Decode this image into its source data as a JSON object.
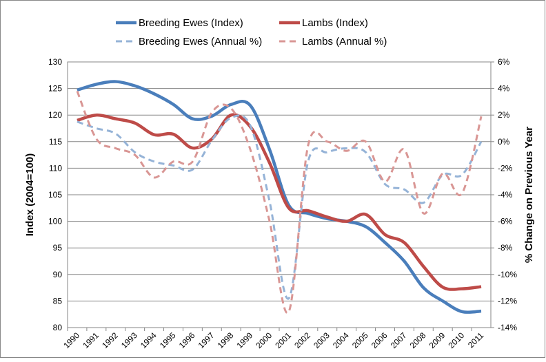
{
  "chart_data": {
    "type": "line",
    "categories": [
      "1990",
      "1991",
      "1992",
      "1993",
      "1994",
      "1995",
      "1996",
      "1997",
      "1998",
      "1999",
      "2000",
      "2001",
      "2002",
      "2003",
      "2004",
      "2005",
      "2006",
      "2007",
      "2008",
      "2009",
      "2010",
      "2011"
    ],
    "y_label": "Index (2004=100)",
    "y2_label": "% Change on Previous Year",
    "ylim": [
      80,
      130
    ],
    "yticks": [
      80,
      85,
      90,
      95,
      100,
      105,
      110,
      115,
      120,
      125,
      130
    ],
    "y2lim": [
      -14,
      6
    ],
    "y2ticks": [
      {
        "value": -14,
        "label": "-14%"
      },
      {
        "value": -12,
        "label": "-12%"
      },
      {
        "value": -10,
        "label": "-10%"
      },
      {
        "value": -8,
        "label": "-8%"
      },
      {
        "value": -6,
        "label": "-6%"
      },
      {
        "value": -4,
        "label": "-4%"
      },
      {
        "value": -2,
        "label": "-2%"
      },
      {
        "value": 0,
        "label": "0%"
      },
      {
        "value": 2,
        "label": "2%"
      },
      {
        "value": 4,
        "label": "4%"
      },
      {
        "value": 6,
        "label": "6%"
      }
    ],
    "grid": true,
    "smooth": true,
    "series": [
      {
        "name": "Breeding Ewes (Index)",
        "color": "#4a7ebb",
        "dashed": false,
        "values": [
          124.7,
          125.8,
          126.3,
          125.5,
          124,
          122,
          119.3,
          119.8,
          122,
          121.8,
          113.5,
          103,
          101.5,
          100.5,
          100,
          99,
          96,
          92.5,
          87.5,
          85,
          83,
          83.1
        ]
      },
      {
        "name": "Lambs (Index)",
        "color": "#be4b48",
        "dashed": false,
        "values": [
          119,
          120,
          119.3,
          118.5,
          116.3,
          116.4,
          113.8,
          115.5,
          120,
          117.8,
          111,
          102.5,
          102,
          100.8,
          100,
          101.3,
          97.5,
          96,
          91.5,
          87.6,
          87.3,
          87.7
        ]
      },
      {
        "name": "Breeding Ewes (Annual %)",
        "color": "#95b3d7",
        "dashed": true,
        "axis": "y2",
        "values": [
          1.5,
          1.0,
          0.6,
          -0.8,
          -1.5,
          -1.8,
          -2.1,
          0.1,
          1.8,
          1.2,
          -4.5,
          -11.8,
          -1.5,
          -0.8,
          -0.5,
          -0.8,
          -3.2,
          -3.6,
          -4.6,
          -2.5,
          -2.5,
          0
        ]
      },
      {
        "name": "Lambs (Annual %)",
        "color": "#d99694",
        "dashed": true,
        "axis": "y2",
        "values": [
          3.8,
          0.2,
          -0.5,
          -1.0,
          -2.7,
          -1.5,
          -1.5,
          2.2,
          2.5,
          -0.6,
          -6.0,
          -12.8,
          -0.3,
          0,
          -0.7,
          0,
          -3.0,
          -0.6,
          -5.4,
          -2.4,
          -3.9,
          1.9
        ]
      }
    ]
  }
}
